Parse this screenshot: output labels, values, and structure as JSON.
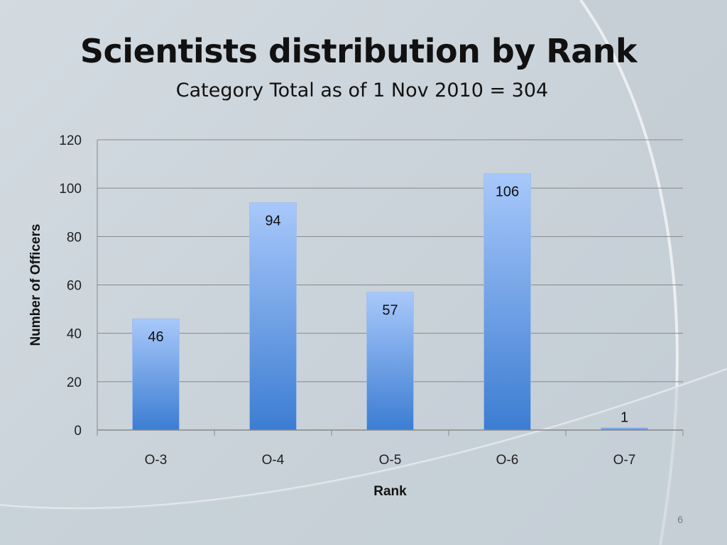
{
  "slide": {
    "title": "Scientists distribution by Rank",
    "subtitle": "Category Total as of 1 Nov 2010 = 304",
    "page_number": "6",
    "colors": {
      "bar_top": "#a8c8fa",
      "bar_bottom": "#3c7dd2",
      "gridline": "#888888",
      "background": "#cfd7de"
    }
  },
  "chart_data": {
    "type": "bar",
    "categories": [
      "O-3",
      "O-4",
      "O-5",
      "O-6",
      "O-7"
    ],
    "values": [
      46,
      94,
      57,
      106,
      1
    ],
    "data_labels": [
      "46",
      "94",
      "57",
      "106",
      "1"
    ],
    "xlabel": "Rank",
    "ylabel": "Number of Officers",
    "ylim": [
      0,
      120
    ],
    "yticks": [
      0,
      20,
      40,
      60,
      80,
      100,
      120
    ],
    "ytick_labels": [
      "0",
      "20",
      "40",
      "60",
      "80",
      "100",
      "120"
    ],
    "grid": true,
    "legend": "none"
  }
}
